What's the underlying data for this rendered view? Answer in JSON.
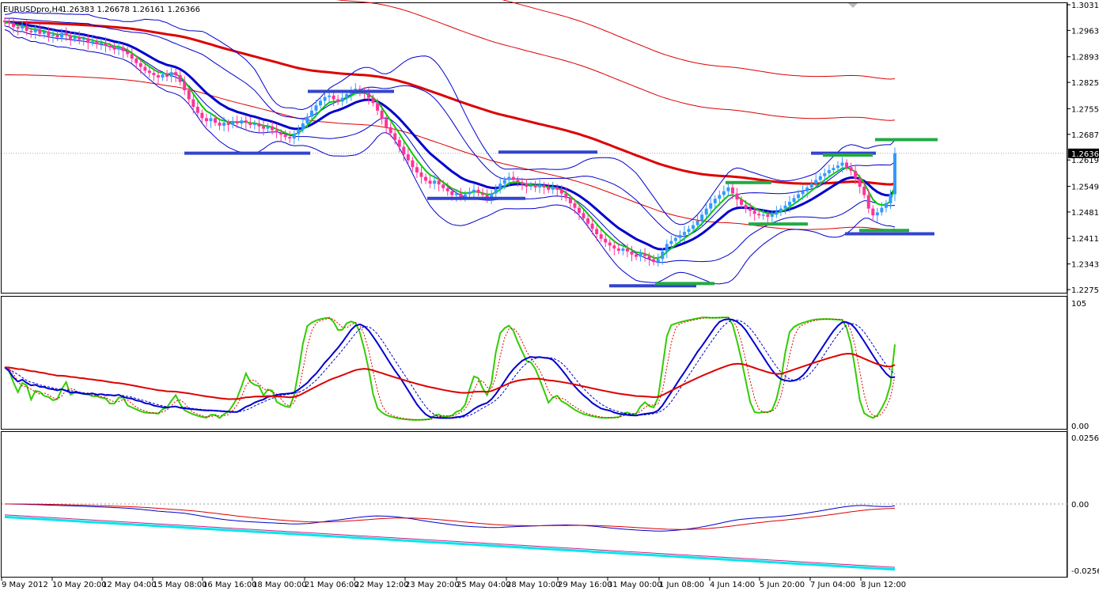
{
  "header": {
    "symbol": "EURUSDpro,H4",
    "ohlc": "1.26383 1.26678 1.26161 1.26366"
  },
  "colors": {
    "bull": "#3399ff",
    "bear": "#ff3399",
    "ema_fast": "#00cc00",
    "ema_slow": "#0000cc",
    "ema_long": "#dd0000",
    "bands_blue": "#0000cc",
    "bands_red": "#dd0000",
    "level_blue": "#3344cc",
    "level_green": "#22aa44",
    "stoch_green": "#33cc00",
    "stoch_blue": "#0000cc",
    "stoch_red": "#dd0000",
    "macd_cyan": "#00e5ee",
    "macd_magenta": "#cc2288",
    "macd_blue": "#0000cc",
    "macd_red": "#dd0000"
  },
  "chart_data": [
    {
      "type": "candlestick",
      "name": "price",
      "ylim": [
        1.2275,
        1.3031
      ],
      "y_ticks": [
        "1.30310",
        "1.29630",
        "1.28930",
        "1.28250",
        "1.27550",
        "1.26870",
        "1.26190",
        "1.25490",
        "1.24810",
        "1.24110",
        "1.23430",
        "1.22750"
      ],
      "current_price": "1.26366",
      "x_ticks": [
        "9 May 2012",
        "10 May 20:00",
        "12 May 04:00",
        "15 May 08:00",
        "16 May 16:00",
        "18 May 00:00",
        "21 May 06:00",
        "22 May 12:00",
        "23 May 20:00",
        "25 May 04:00",
        "28 May 10:00",
        "29 May 16:00",
        "31 May 00:00",
        "1 Jun 08:00",
        "4 Jun 14:00",
        "5 Jun 20:00",
        "7 Jun 04:00",
        "8 Jun 12:00"
      ],
      "closes": [
        1.2985,
        1.2982,
        1.2972,
        1.2968,
        1.2975,
        1.2962,
        1.2958,
        1.2966,
        1.2954,
        1.296,
        1.2948,
        1.2952,
        1.2944,
        1.2956,
        1.295,
        1.294,
        1.2946,
        1.2938,
        1.2942,
        1.293,
        1.2934,
        1.2926,
        1.293,
        1.2922,
        1.2918,
        1.2912,
        1.2918,
        1.2908,
        1.29,
        1.2888,
        1.2876,
        1.2866,
        1.2856,
        1.285,
        1.2844,
        1.2838,
        1.2846,
        1.284,
        1.2852,
        1.2844,
        1.2826,
        1.2804,
        1.278,
        1.276,
        1.2744,
        1.273,
        1.2722,
        1.273,
        1.2718,
        1.271,
        1.2718,
        1.2712,
        1.2722,
        1.2716,
        1.2724,
        1.2718,
        1.2712,
        1.2716,
        1.2708,
        1.2702,
        1.2708,
        1.2698,
        1.2692,
        1.2686,
        1.268,
        1.2676,
        1.2688,
        1.27,
        1.2716,
        1.2734,
        1.275,
        1.2764,
        1.2776,
        1.2786,
        1.279,
        1.278,
        1.2774,
        1.2784,
        1.2794,
        1.2802,
        1.2808,
        1.28,
        1.2796,
        1.2784,
        1.277,
        1.275,
        1.2728,
        1.2706,
        1.269,
        1.2672,
        1.2654,
        1.2634,
        1.2618,
        1.26,
        1.2586,
        1.2574,
        1.2564,
        1.2556,
        1.2564,
        1.2554,
        1.2544,
        1.2536,
        1.2526,
        1.253,
        1.252,
        1.2528,
        1.2534,
        1.254,
        1.2532,
        1.2526,
        1.252,
        1.253,
        1.2542,
        1.2556,
        1.2566,
        1.2574,
        1.2566,
        1.256,
        1.2554,
        1.2548,
        1.2552,
        1.2546,
        1.2552,
        1.2546,
        1.254,
        1.2546,
        1.254,
        1.253,
        1.2518,
        1.2504,
        1.2492,
        1.2478,
        1.2464,
        1.245,
        1.2436,
        1.2422,
        1.241,
        1.24,
        1.2392,
        1.2384,
        1.2378,
        1.2384,
        1.2376,
        1.2368,
        1.2362,
        1.237,
        1.2364,
        1.2356,
        1.2348,
        1.2356,
        1.2376,
        1.2396,
        1.2404,
        1.2412,
        1.242,
        1.2428,
        1.2436,
        1.2446,
        1.2458,
        1.2474,
        1.249,
        1.2504,
        1.2516,
        1.2526,
        1.2536,
        1.2546,
        1.253,
        1.2514,
        1.25,
        1.249,
        1.2484,
        1.2476,
        1.2472,
        1.2474,
        1.2468,
        1.2474,
        1.2482,
        1.249,
        1.2498,
        1.2508,
        1.2518,
        1.2528,
        1.2536,
        1.2546,
        1.2556,
        1.2566,
        1.2576,
        1.2584,
        1.2592,
        1.2598,
        1.2604,
        1.2612,
        1.26,
        1.259,
        1.257,
        1.2548,
        1.2526,
        1.249,
        1.2472,
        1.248,
        1.2492,
        1.2504,
        1.2528,
        1.2637
      ],
      "levels_blue": [
        {
          "x": [
            "9 May 2012+54",
            "9 May 2012+96"
          ],
          "y": 1.2637
        },
        {
          "x": [
            "9 May 2012+112",
            "9 May 2012+148"
          ],
          "y": 1.2801
        },
        {
          "x": [
            "9 May 2012+159",
            "9 May 2012+189"
          ],
          "y": 1.2517
        },
        {
          "x": [
            "9 May 2012+146",
            "9 May 2012+176"
          ],
          "y": 1.2637
        }
      ],
      "ema": {
        "fast": 5,
        "mid": 14,
        "slow": 100
      }
    },
    {
      "type": "line",
      "name": "stochastic",
      "ylim": [
        0,
        105
      ],
      "y_ticks": [
        "105",
        "0.00"
      ]
    },
    {
      "type": "line",
      "name": "macd",
      "ylim": [
        -0.02569,
        0.02569
      ],
      "y_ticks": [
        "0.02569",
        "0.00",
        "-0.02569"
      ]
    }
  ]
}
